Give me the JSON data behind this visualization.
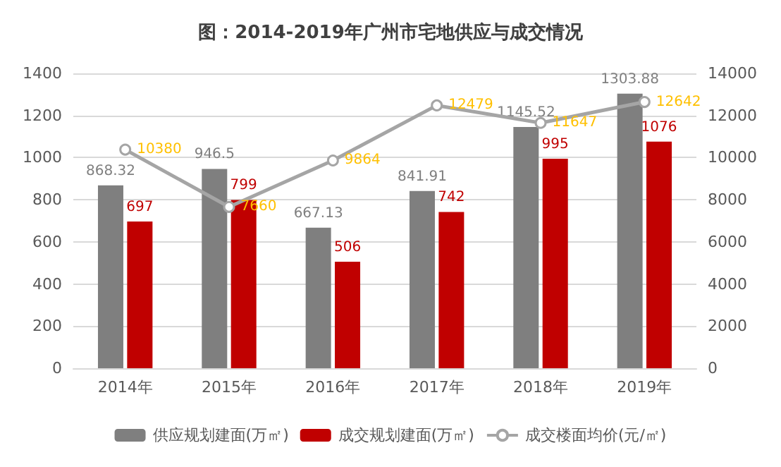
{
  "chart_data": {
    "type": "bar",
    "title": "图：2014-2019年广州市宅地供应与成交情况",
    "categories": [
      "2014年",
      "2015年",
      "2016年",
      "2017年",
      "2018年",
      "2019年"
    ],
    "series": [
      {
        "name": "供应规划建面(万㎡)",
        "color": "#7f7f7f",
        "values": [
          868.32,
          946.5,
          667.13,
          841.91,
          1145.52,
          1303.88
        ]
      },
      {
        "name": "成交规划建面(万㎡)",
        "color": "#c00000",
        "values": [
          697,
          799,
          506,
          742,
          995,
          1076
        ]
      },
      {
        "name": "成交楼面均价(元/㎡)",
        "type": "line",
        "axis": "y2",
        "color": "#a5a5a5",
        "values": [
          10380,
          7660,
          9864,
          12479,
          11647,
          12642
        ]
      }
    ],
    "ylim": [
      0,
      1400
    ],
    "yticks": [
      0,
      200,
      400,
      600,
      800,
      1000,
      1200,
      1400
    ],
    "y2lim": [
      0,
      14000
    ],
    "y2ticks": [
      0,
      2000,
      4000,
      6000,
      8000,
      10000,
      12000,
      14000
    ],
    "data_labels": true,
    "grid": "y",
    "legend": "bottom",
    "marker": "circle"
  }
}
